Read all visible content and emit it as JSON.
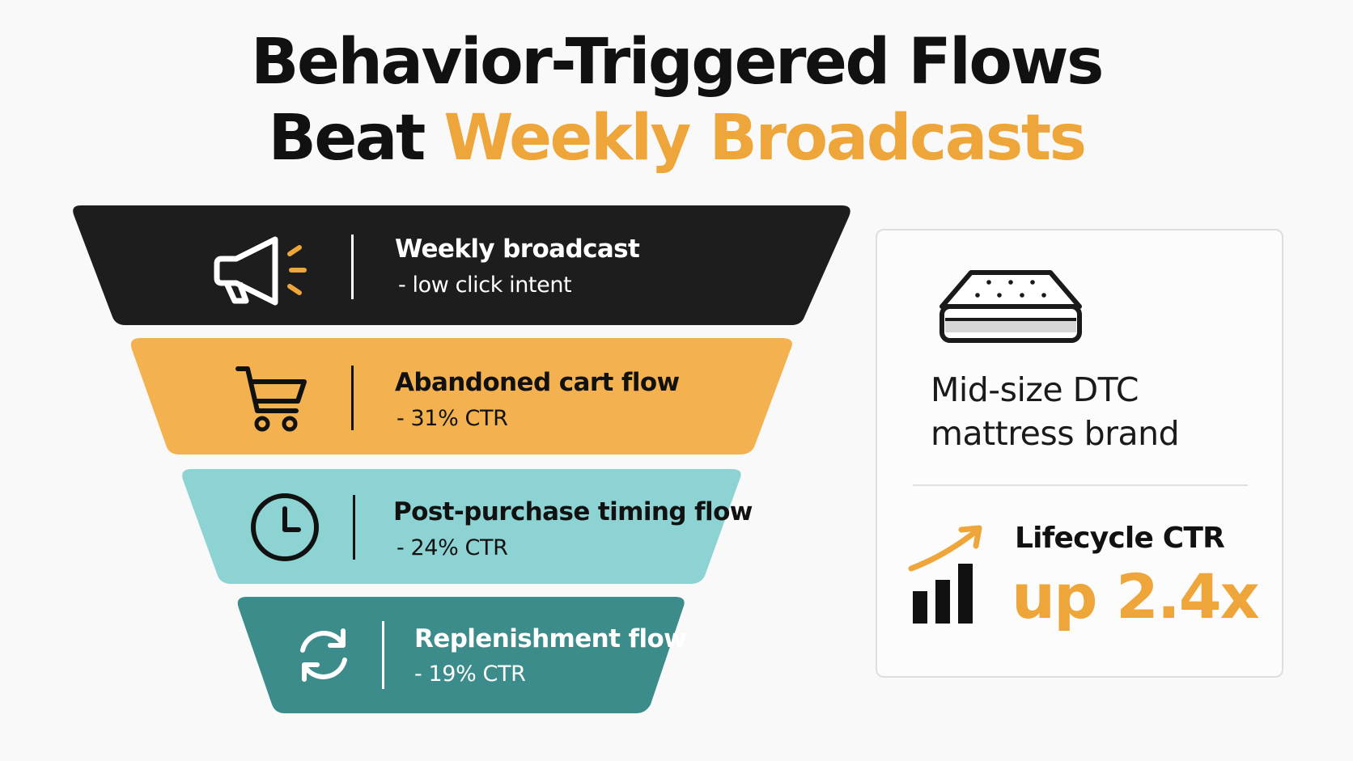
{
  "title": {
    "line1": "Behavior-Triggered Flows",
    "line2_plain": "Beat ",
    "line2_accent": "Weekly Broadcasts"
  },
  "colors": {
    "dark": "#1d1d1d",
    "amber": "#f3b24f",
    "light_teal": "#8dd3d3",
    "dark_teal": "#3b8c8a",
    "accent": "#eea63a"
  },
  "funnel": [
    {
      "label": "Weekly broadcast",
      "sub": "- low click intent",
      "icon": "megaphone-icon"
    },
    {
      "label": "Abandoned cart flow",
      "sub": "- 31% CTR",
      "icon": "shopping-cart-icon"
    },
    {
      "label": "Post-purchase timing flow",
      "sub": "- 24% CTR",
      "icon": "clock-icon"
    },
    {
      "label": "Replenishment flow",
      "sub": "- 19% CTR",
      "icon": "refresh-cycle-icon"
    }
  ],
  "card": {
    "brand_line1": "Mid-size DTC",
    "brand_line2": "mattress brand",
    "kpi_label": "Lifecycle CTR",
    "kpi_value": "up 2.4x",
    "brand_icon": "mattress-icon",
    "kpi_icon": "growth-chart-icon"
  }
}
